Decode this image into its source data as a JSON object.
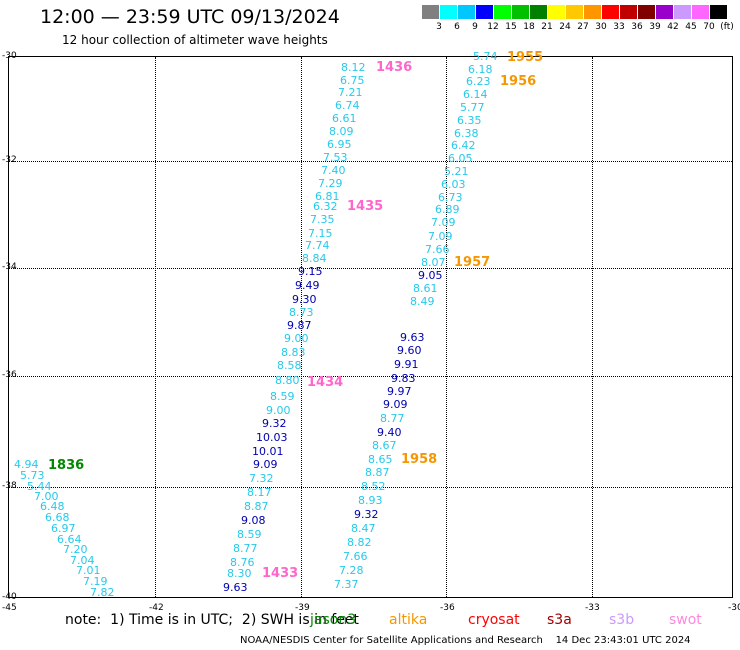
{
  "header": {
    "title": "12:00 — 23:59 UTC 09/13/2024",
    "subtitle": "12 hour collection of altimeter wave heights"
  },
  "legend_scale": {
    "labels": [
      "3",
      "6",
      "9",
      "12",
      "15",
      "18",
      "21",
      "24",
      "27",
      "30",
      "33",
      "36",
      "39",
      "42",
      "45",
      "70",
      "(ft)"
    ],
    "colors": [
      "#808080",
      "#00ffff",
      "#00c8ff",
      "#0000ff",
      "#00ff00",
      "#00c000",
      "#008000",
      "#ffff00",
      "#ffc800",
      "#ff9600",
      "#ff0000",
      "#c00000",
      "#800000",
      "#9900cc",
      "#cc99ff",
      "#ff66ff",
      "#000000"
    ]
  },
  "axes": {
    "x_ticks": [
      "-45",
      "-42",
      "-39",
      "-36",
      "-33",
      "-30"
    ],
    "y_ticks": [
      "-30",
      "-32",
      "-34",
      "-36",
      "-38",
      "-40"
    ]
  },
  "colors": {
    "light": "#27c9ea",
    "dark": "#0000b0",
    "time_pink": "#ff66cc",
    "time_orange": "#f59700",
    "time_green": "#008800"
  },
  "times": [
    {
      "text": "1436",
      "c": "pink"
    },
    {
      "text": "1435",
      "c": "pink"
    },
    {
      "text": "1434",
      "c": "pink"
    },
    {
      "text": "1433",
      "c": "pink"
    },
    {
      "text": "1955",
      "c": "orange"
    },
    {
      "text": "1956",
      "c": "orange"
    },
    {
      "text": "1957",
      "c": "orange"
    },
    {
      "text": "1958",
      "c": "orange"
    },
    {
      "text": "1836",
      "c": "green"
    }
  ],
  "values": [
    {
      "text": "8.12",
      "c": "light"
    },
    {
      "text": "6.75",
      "c": "light"
    },
    {
      "text": "7.21",
      "c": "light"
    },
    {
      "text": "6.74",
      "c": "light"
    },
    {
      "text": "6.61",
      "c": "light"
    },
    {
      "text": "8.09",
      "c": "light"
    },
    {
      "text": "6.95",
      "c": "light"
    },
    {
      "text": "7.53",
      "c": "light"
    },
    {
      "text": "7.40",
      "c": "light"
    },
    {
      "text": "7.29",
      "c": "light"
    },
    {
      "text": "6.81",
      "c": "light"
    },
    {
      "text": "6.32",
      "c": "light"
    },
    {
      "text": "7.35",
      "c": "light"
    },
    {
      "text": "7.15",
      "c": "light"
    },
    {
      "text": "7.74",
      "c": "light"
    },
    {
      "text": "8.84",
      "c": "light"
    },
    {
      "text": "9.15",
      "c": "dark"
    },
    {
      "text": "9.49",
      "c": "dark"
    },
    {
      "text": "9.30",
      "c": "dark"
    },
    {
      "text": "8.73",
      "c": "light"
    },
    {
      "text": "9.87",
      "c": "dark"
    },
    {
      "text": "9.00",
      "c": "light"
    },
    {
      "text": "8.83",
      "c": "light"
    },
    {
      "text": "8.58",
      "c": "light"
    },
    {
      "text": "8.80",
      "c": "light"
    },
    {
      "text": "8.59",
      "c": "light"
    },
    {
      "text": "9.00",
      "c": "light"
    },
    {
      "text": "9.32",
      "c": "dark"
    },
    {
      "text": "10.03",
      "c": "dark"
    },
    {
      "text": "10.01",
      "c": "dark"
    },
    {
      "text": "9.09",
      "c": "dark"
    },
    {
      "text": "7.32",
      "c": "light"
    },
    {
      "text": "8.17",
      "c": "light"
    },
    {
      "text": "8.87",
      "c": "light"
    },
    {
      "text": "9.08",
      "c": "dark"
    },
    {
      "text": "8.59",
      "c": "light"
    },
    {
      "text": "8.77",
      "c": "light"
    },
    {
      "text": "8.76",
      "c": "light"
    },
    {
      "text": "8.30",
      "c": "light"
    },
    {
      "text": "9.63",
      "c": "dark"
    },
    {
      "text": "5.74",
      "c": "light"
    },
    {
      "text": "6.18",
      "c": "light"
    },
    {
      "text": "6.23",
      "c": "light"
    },
    {
      "text": "6.14",
      "c": "light"
    },
    {
      "text": "5.77",
      "c": "light"
    },
    {
      "text": "6.35",
      "c": "light"
    },
    {
      "text": "6.38",
      "c": "light"
    },
    {
      "text": "6.42",
      "c": "light"
    },
    {
      "text": "6.05",
      "c": "light"
    },
    {
      "text": "5.21",
      "c": "light"
    },
    {
      "text": "6.03",
      "c": "light"
    },
    {
      "text": "6.73",
      "c": "light"
    },
    {
      "text": "6.89",
      "c": "light"
    },
    {
      "text": "7.09",
      "c": "light"
    },
    {
      "text": "7.09",
      "c": "light"
    },
    {
      "text": "7.66",
      "c": "light"
    },
    {
      "text": "8.07",
      "c": "light"
    },
    {
      "text": "9.05",
      "c": "dark"
    },
    {
      "text": "8.61",
      "c": "light"
    },
    {
      "text": "8.49",
      "c": "light"
    },
    {
      "text": "9.63",
      "c": "dark"
    },
    {
      "text": "9.60",
      "c": "dark"
    },
    {
      "text": "9.91",
      "c": "dark"
    },
    {
      "text": "9.83",
      "c": "dark"
    },
    {
      "text": "9.97",
      "c": "dark"
    },
    {
      "text": "9.09",
      "c": "dark"
    },
    {
      "text": "8.77",
      "c": "light"
    },
    {
      "text": "9.40",
      "c": "dark"
    },
    {
      "text": "8.67",
      "c": "light"
    },
    {
      "text": "8.65",
      "c": "light"
    },
    {
      "text": "8.87",
      "c": "light"
    },
    {
      "text": "8.52",
      "c": "light"
    },
    {
      "text": "8.93",
      "c": "light"
    },
    {
      "text": "9.32",
      "c": "dark"
    },
    {
      "text": "8.47",
      "c": "light"
    },
    {
      "text": "8.82",
      "c": "light"
    },
    {
      "text": "7.66",
      "c": "light"
    },
    {
      "text": "7.28",
      "c": "light"
    },
    {
      "text": "7.37",
      "c": "light"
    },
    {
      "text": "4.94",
      "c": "light"
    },
    {
      "text": "5.73",
      "c": "light"
    },
    {
      "text": "5.44",
      "c": "light"
    },
    {
      "text": "7.00",
      "c": "light"
    },
    {
      "text": "6.48",
      "c": "light"
    },
    {
      "text": "6.68",
      "c": "light"
    },
    {
      "text": "6.97",
      "c": "light"
    },
    {
      "text": "6.64",
      "c": "light"
    },
    {
      "text": "7.20",
      "c": "light"
    },
    {
      "text": "7.04",
      "c": "light"
    },
    {
      "text": "7.01",
      "c": "light"
    },
    {
      "text": "7.19",
      "c": "light"
    },
    {
      "text": "7.82",
      "c": "light"
    }
  ],
  "footer": {
    "note": "note:  1) Time is in UTC;  2) SWH is in feet",
    "satellites": [
      {
        "name": "jason3",
        "color": "#008800"
      },
      {
        "name": "altika",
        "color": "#f59700"
      },
      {
        "name": "cryosat",
        "color": "#ff0000"
      },
      {
        "name": "s3a",
        "color": "#a00000"
      },
      {
        "name": "s3b",
        "color": "#cc99ff"
      },
      {
        "name": "swot",
        "color": "#ff88dd"
      }
    ],
    "credit": "NOAA/NESDIS Center for Satellite Applications and Research    14 Dec 23:43:01 UTC 2024"
  }
}
